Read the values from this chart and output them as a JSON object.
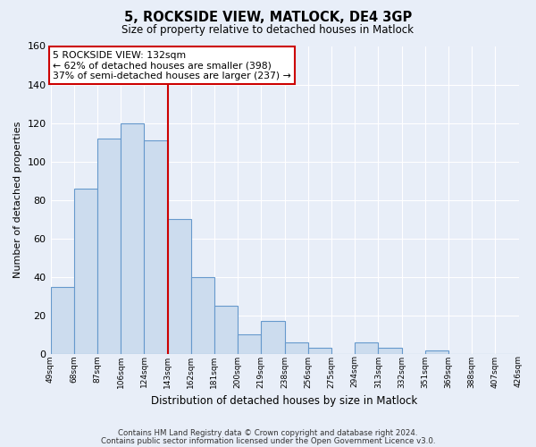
{
  "title": "5, ROCKSIDE VIEW, MATLOCK, DE4 3GP",
  "subtitle": "Size of property relative to detached houses in Matlock",
  "xlabel": "Distribution of detached houses by size in Matlock",
  "ylabel": "Number of detached properties",
  "bar_values": [
    35,
    86,
    112,
    120,
    111,
    70,
    40,
    25,
    10,
    17,
    6,
    3,
    0,
    6,
    3,
    0,
    2
  ],
  "bin_labels": [
    "49sqm",
    "68sqm",
    "87sqm",
    "106sqm",
    "124sqm",
    "143sqm",
    "162sqm",
    "181sqm",
    "200sqm",
    "219sqm",
    "238sqm",
    "256sqm",
    "275sqm",
    "294sqm",
    "313sqm",
    "332sqm",
    "351sqm",
    "369sqm",
    "388sqm",
    "407sqm",
    "426sqm"
  ],
  "bar_color": "#ccdcee",
  "bar_edge_color": "#6699cc",
  "background_color": "#e8eef8",
  "grid_color": "#ffffff",
  "vline_color": "#cc0000",
  "annotation_text": "5 ROCKSIDE VIEW: 132sqm\n← 62% of detached houses are smaller (398)\n37% of semi-detached houses are larger (237) →",
  "annotation_box_color": "#ffffff",
  "annotation_box_edge_color": "#cc0000",
  "ylim": [
    0,
    160
  ],
  "yticks": [
    0,
    20,
    40,
    60,
    80,
    100,
    120,
    140,
    160
  ],
  "footer1": "Contains HM Land Registry data © Crown copyright and database right 2024.",
  "footer2": "Contains public sector information licensed under the Open Government Licence v3.0."
}
